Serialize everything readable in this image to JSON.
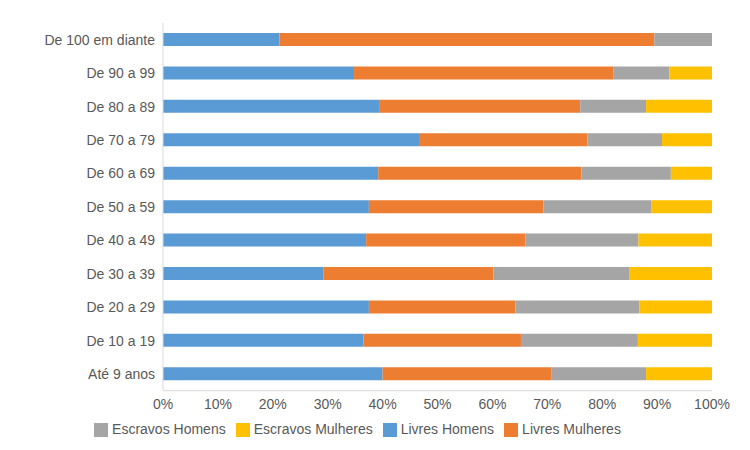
{
  "chart_data": {
    "type": "bar",
    "orientation": "horizontal",
    "stacked": true,
    "grid": false,
    "legend": "bottom",
    "categories": [
      "Até 9 anos",
      "De 10 a 19",
      "De 20 a 29",
      "De 30 a 39",
      "De 40 a 49",
      "De 50 a 59",
      "De 60 a 69",
      "De 70 a 79",
      "De 80 a 89",
      "De 90 a 99",
      "De 100 em diante"
    ],
    "series": [
      {
        "name": "Livres Homens",
        "color": "#5b9bd5",
        "values": [
          40,
          36.5,
          37.5,
          29.2,
          37,
          37.5,
          39.2,
          46.8,
          39.5,
          34.8,
          21.2
        ]
      },
      {
        "name": "Livres Mulheres",
        "color": "#ed7d31",
        "values": [
          30.7,
          28.7,
          26.7,
          31,
          29,
          31.8,
          37,
          30.5,
          36.5,
          47.2,
          68.3
        ]
      },
      {
        "name": "Escravos Homens",
        "color": "#a5a5a5",
        "values": [
          17.3,
          21.3,
          22.6,
          24.8,
          20.6,
          19.7,
          16.3,
          13.6,
          12,
          10.2,
          10.5
        ]
      },
      {
        "name": "Escravos Mulheres",
        "color": "#ffc000",
        "values": [
          12,
          13.5,
          13.2,
          15,
          13.4,
          11,
          7.5,
          9.1,
          12,
          7.8,
          0
        ]
      }
    ],
    "xlim": [
      0,
      100
    ],
    "xticks": [
      {
        "value": 0,
        "label": "0%"
      },
      {
        "value": 10,
        "label": "10%"
      },
      {
        "value": 20,
        "label": "20%"
      },
      {
        "value": 30,
        "label": "30%"
      },
      {
        "value": 40,
        "label": "40%"
      },
      {
        "value": 50,
        "label": "50%"
      },
      {
        "value": 60,
        "label": "60%"
      },
      {
        "value": 70,
        "label": "70%"
      },
      {
        "value": 80,
        "label": "80%"
      },
      {
        "value": 90,
        "label": "90%"
      },
      {
        "value": 100,
        "label": "100%"
      }
    ]
  }
}
